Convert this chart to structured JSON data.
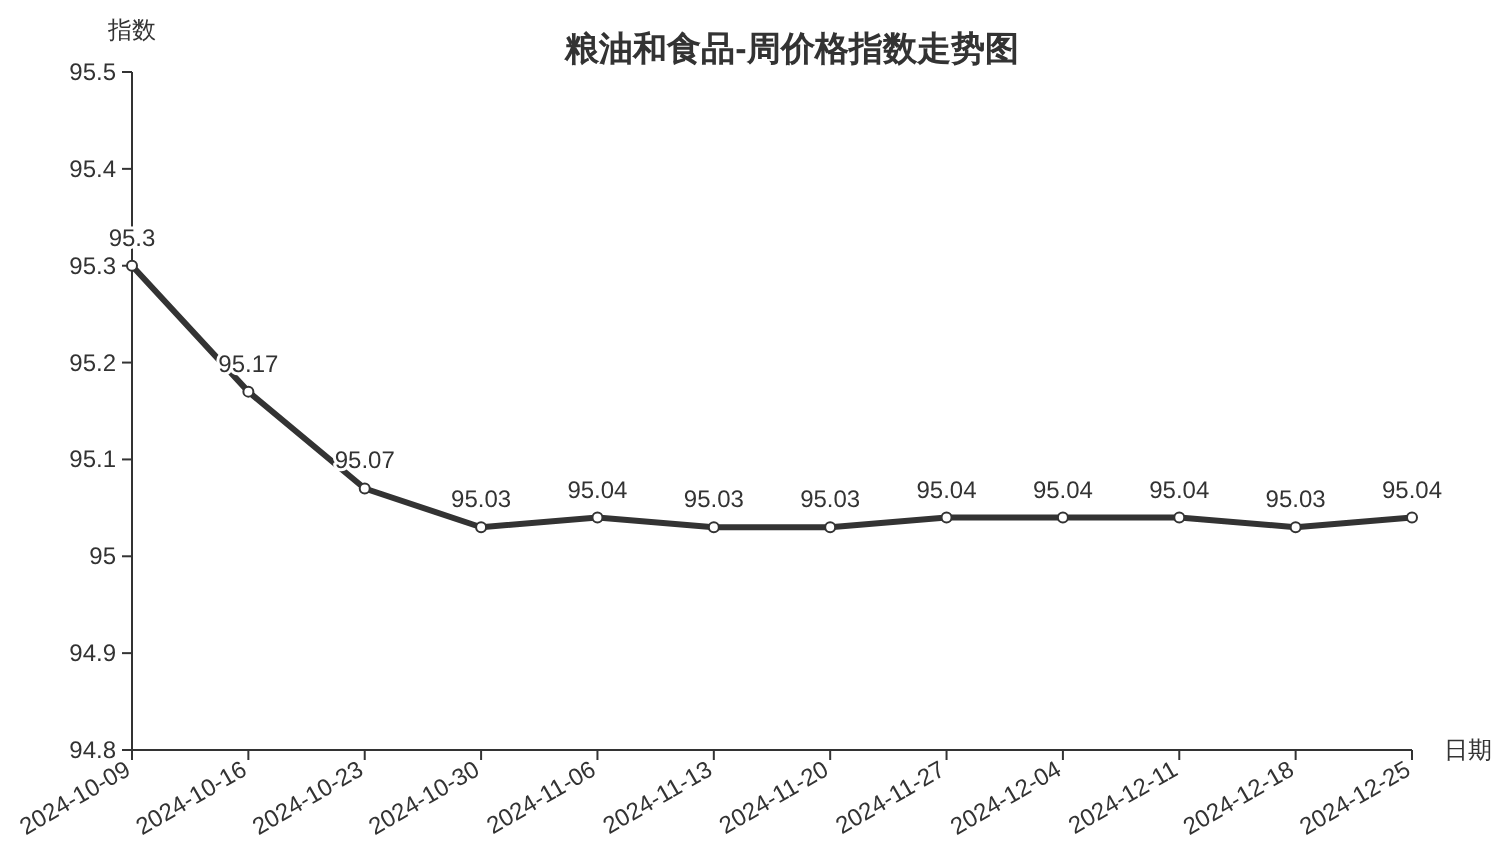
{
  "chart_data": {
    "type": "line",
    "title": "粮油和食品-周价格指数走势图",
    "xlabel": "日期",
    "ylabel": "指数",
    "categories": [
      "2024-10-09",
      "2024-10-16",
      "2024-10-23",
      "2024-10-30",
      "2024-11-06",
      "2024-11-13",
      "2024-11-20",
      "2024-11-27",
      "2024-12-04",
      "2024-12-11",
      "2024-12-18",
      "2024-12-25"
    ],
    "series": [
      {
        "color": "#333333",
        "values": [
          95.3,
          95.17,
          95.07,
          95.03,
          95.04,
          95.03,
          95.03,
          95.04,
          95.04,
          95.04,
          95.03,
          95.04
        ]
      }
    ],
    "ylim": [
      94.8,
      95.5
    ],
    "yticks": [
      94.8,
      94.9,
      95,
      95.1,
      95.2,
      95.3,
      95.4,
      95.5
    ],
    "data_labels": true,
    "marker": "circle",
    "line_style": "solid"
  }
}
